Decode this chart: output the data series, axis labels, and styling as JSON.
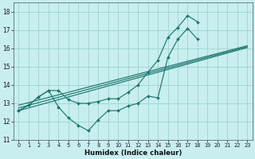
{
  "xlabel": "Humidex (Indice chaleur)",
  "background_color": "#c8eef0",
  "grid_color": "#9dd4cc",
  "line_color": "#1e7870",
  "xlim": [
    -0.5,
    23.5
  ],
  "ylim": [
    11,
    18.5
  ],
  "yticks": [
    11,
    12,
    13,
    14,
    15,
    16,
    17,
    18
  ],
  "xticks": [
    0,
    1,
    2,
    3,
    4,
    5,
    6,
    7,
    8,
    9,
    10,
    11,
    12,
    13,
    14,
    15,
    16,
    17,
    18,
    19,
    20,
    21,
    22,
    23
  ],
  "series_low": {
    "x": [
      0,
      1,
      2,
      3,
      4,
      5,
      6,
      7,
      8,
      9,
      10,
      11,
      12,
      13,
      14,
      15,
      16,
      17,
      18
    ],
    "y": [
      12.6,
      12.9,
      13.35,
      13.7,
      12.8,
      12.2,
      11.8,
      11.5,
      12.1,
      12.6,
      12.6,
      12.85,
      13.0,
      13.4,
      13.3,
      15.5,
      16.5,
      17.1,
      16.5
    ]
  },
  "series_high": {
    "x": [
      0,
      1,
      2,
      3,
      4,
      5,
      6,
      7,
      8,
      9,
      10,
      11,
      12,
      13,
      14,
      15,
      16,
      17,
      18,
      19,
      20,
      21,
      22,
      23
    ],
    "y": [
      12.6,
      12.9,
      13.35,
      13.7,
      13.7,
      13.2,
      13.0,
      13.0,
      13.1,
      13.25,
      13.25,
      13.6,
      14.0,
      14.7,
      15.35,
      16.6,
      17.15,
      17.8,
      17.45,
      null,
      null,
      null,
      null,
      null
    ]
  },
  "trend1": {
    "x": [
      0,
      23
    ],
    "y": [
      12.6,
      16.05
    ]
  },
  "trend2": {
    "x": [
      0,
      23
    ],
    "y": [
      12.75,
      16.1
    ]
  },
  "trend3": {
    "x": [
      0,
      23
    ],
    "y": [
      12.9,
      16.15
    ]
  }
}
